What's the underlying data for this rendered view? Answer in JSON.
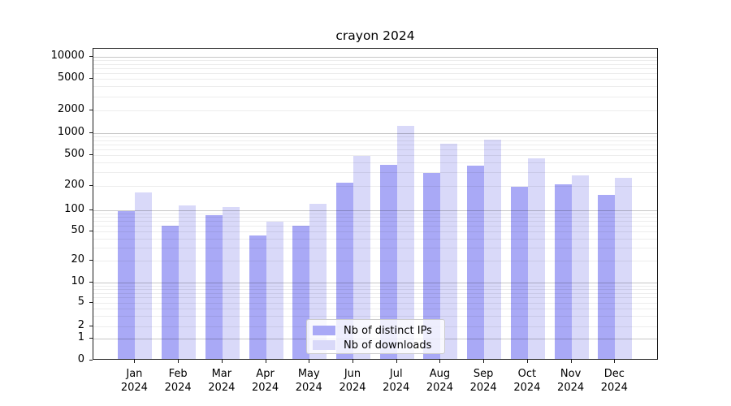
{
  "chart_data": {
    "type": "bar",
    "title": "crayon 2024",
    "categories": [
      "Jan 2024",
      "Feb 2024",
      "Mar 2024",
      "Apr 2024",
      "May 2024",
      "Jun 2024",
      "Jul 2024",
      "Aug 2024",
      "Sep 2024",
      "Oct 2024",
      "Nov 2024",
      "Dec 2024"
    ],
    "series": [
      {
        "name": "Nb of distinct IPs",
        "color": "#a9a9f6",
        "values": [
          93,
          57,
          81,
          42,
          57,
          210,
          360,
          280,
          350,
          188,
          200,
          148
        ]
      },
      {
        "name": "Nb of downloads",
        "color": "#d9d9f9",
        "values": [
          160,
          110,
          104,
          66,
          115,
          460,
          1180,
          680,
          770,
          428,
          260,
          245
        ]
      }
    ],
    "yscale": "symlog",
    "yticks": [
      0,
      1,
      2,
      5,
      10,
      20,
      50,
      100,
      200,
      500,
      1000,
      2000,
      5000,
      10000
    ],
    "ylim": [
      0,
      12800
    ],
    "xlabel": "",
    "ylabel": "",
    "grid": true,
    "legend_position": "lower center",
    "colors": {
      "major_grid": "rgba(0,0,0,0.22)",
      "minor_grid": "rgba(0,0,0,0.07)",
      "spine": "#1a1a1a"
    }
  }
}
